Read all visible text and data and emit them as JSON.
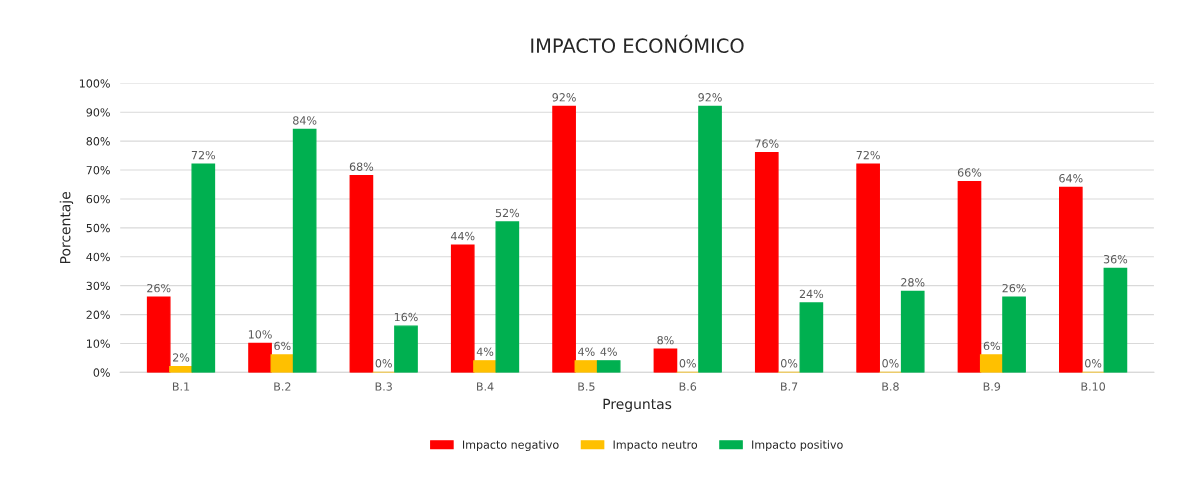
{
  "chart_data": {
    "type": "bar",
    "title": "IMPACTO ECONÓMICO",
    "xlabel": "Preguntas",
    "ylabel": "Porcentaje",
    "categories": [
      "B.1",
      "B.2",
      "B.3",
      "B.4",
      "B.5",
      "B.6",
      "B.7",
      "B.8",
      "B.9",
      "B.10"
    ],
    "series": [
      {
        "name": "Impacto negativo",
        "color": "#ff0000",
        "values": [
          26,
          10,
          68,
          44,
          92,
          8,
          76,
          72,
          66,
          64
        ]
      },
      {
        "name": "Impacto neutro",
        "color": "#ffc000",
        "values": [
          2,
          6,
          0,
          4,
          4,
          0,
          0,
          0,
          6,
          0
        ]
      },
      {
        "name": "Impacto positivo",
        "color": "#00b050",
        "values": [
          72,
          84,
          16,
          52,
          4,
          92,
          24,
          28,
          26,
          36
        ]
      }
    ],
    "ylim": [
      0,
      100
    ],
    "yticks": [
      {
        "value": 0,
        "label": "0%"
      },
      {
        "value": 10,
        "label": "10%"
      },
      {
        "value": 20,
        "label": "20%"
      },
      {
        "value": 30,
        "label": "30%"
      },
      {
        "value": 40,
        "label": "40%"
      },
      {
        "value": 50,
        "label": "50%"
      },
      {
        "value": 60,
        "label": "60%"
      },
      {
        "value": 70,
        "label": "70%"
      },
      {
        "value": 80,
        "label": "80%"
      },
      {
        "value": 90,
        "label": "90%"
      },
      {
        "value": 100,
        "label": "100%"
      }
    ],
    "grid": "y",
    "legend": "bottom",
    "value_labels": [
      [
        "26%",
        "10%",
        "68%",
        "44%",
        "92%",
        "8%",
        "76%",
        "72%",
        "66%",
        "64%"
      ],
      [
        "2%",
        "6%",
        "0%",
        "4%",
        "4%",
        "0%",
        "0%",
        "0%",
        "6%",
        "0%"
      ],
      [
        "72%",
        "84%",
        "16%",
        "52%",
        "4%",
        "92%",
        "24%",
        "28%",
        "26%",
        "36%"
      ]
    ]
  }
}
